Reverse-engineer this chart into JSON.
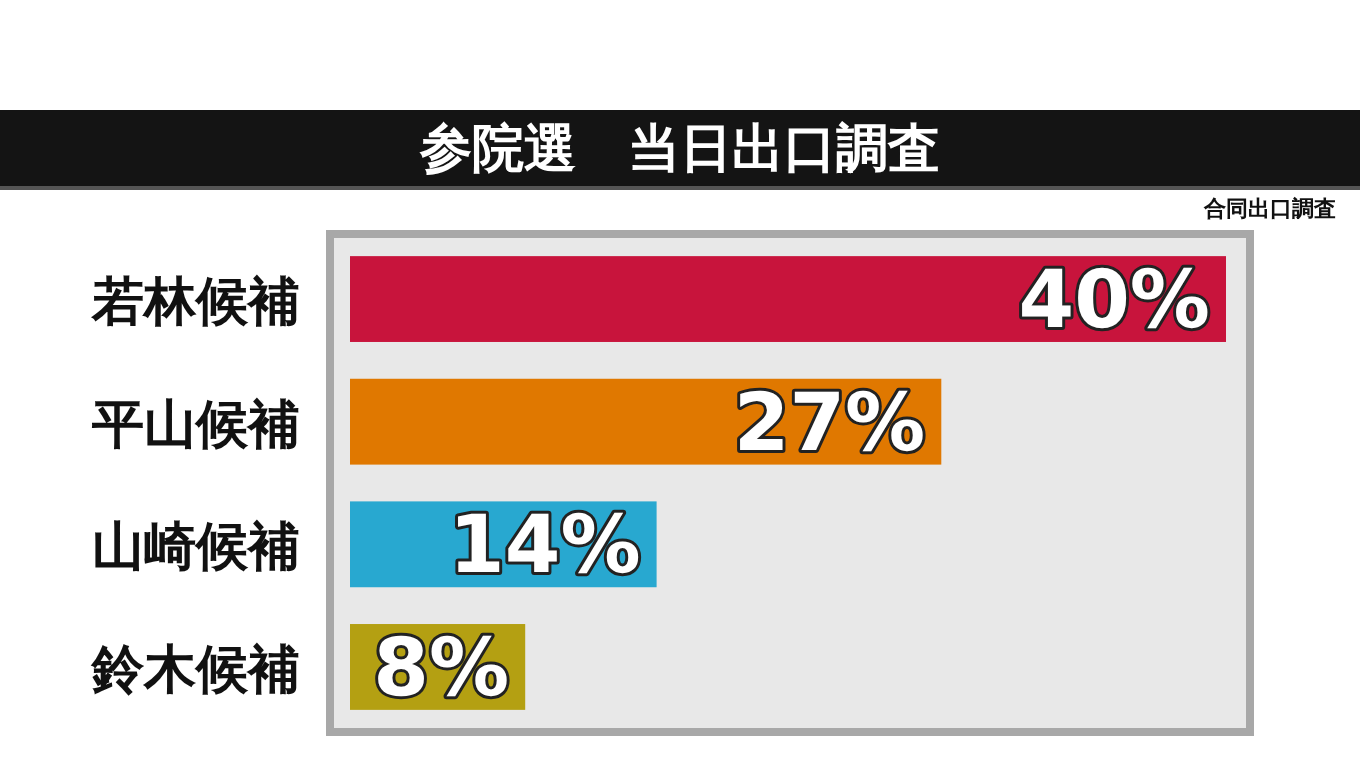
{
  "chart_data": {
    "type": "bar",
    "orientation": "horizontal",
    "title": "参院選　当日出口調査",
    "annotations": [
      "合同出口調査"
    ],
    "categories": [
      "若林候補",
      "平山候補",
      "山崎候補",
      "鈴木候補"
    ],
    "values": [
      40,
      27,
      14,
      8
    ],
    "colors": [
      "#c8143c",
      "#e07800",
      "#28a8d0",
      "#b4a012"
    ],
    "value_labels": [
      "40%",
      "27%",
      "14%",
      "8%"
    ]
  }
}
